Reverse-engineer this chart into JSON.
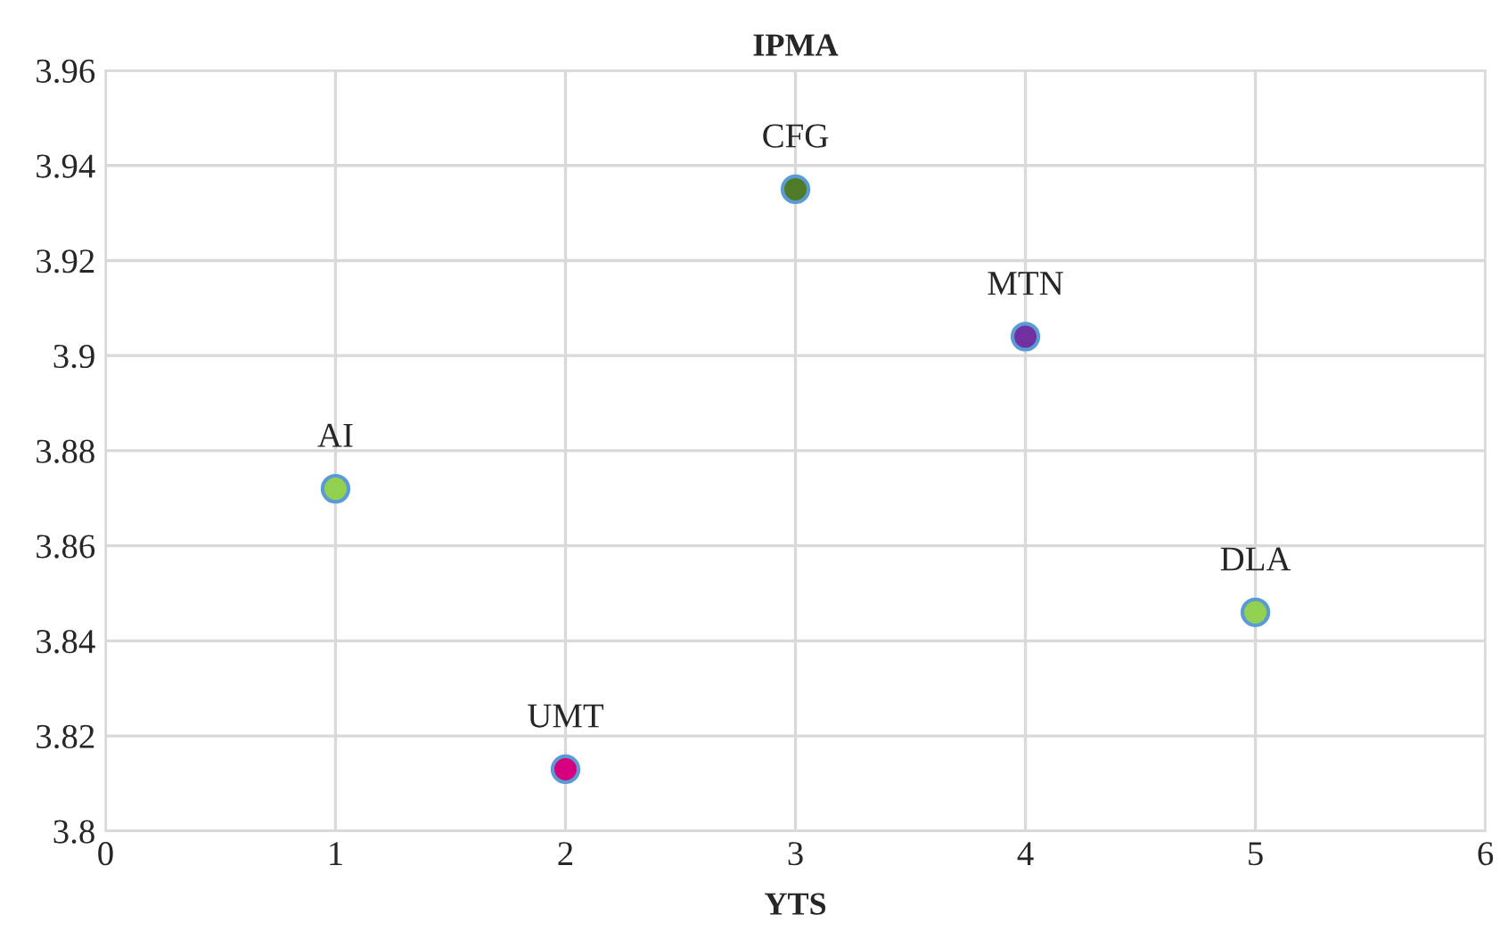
{
  "chart_data": {
    "type": "scatter",
    "title": "IPMA",
    "xlabel": "YTS",
    "x": [
      1,
      2,
      3,
      4,
      5
    ],
    "values": [
      3.872,
      3.813,
      3.935,
      3.904,
      3.846
    ],
    "colors": [
      "#92d050",
      "#d6007f",
      "#4f7a28",
      "#7030a0",
      "#92d050"
    ],
    "annotations": [
      {
        "text": "AI",
        "x": 1,
        "y": 3.872
      },
      {
        "text": "UMT",
        "x": 2,
        "y": 3.813
      },
      {
        "text": "CFG",
        "x": 3,
        "y": 3.935
      },
      {
        "text": "MTN",
        "x": 4,
        "y": 3.904
      },
      {
        "text": "DLA",
        "x": 5,
        "y": 3.846
      }
    ],
    "xlim": [
      0,
      6
    ],
    "xticks": [
      0,
      1,
      2,
      3,
      4,
      5,
      6
    ],
    "ylim": [
      3.8,
      3.96
    ],
    "yticks": [
      3.8,
      3.82,
      3.84,
      3.86,
      3.88,
      3.9,
      3.92,
      3.94,
      3.96
    ],
    "grid": true,
    "marker": "circle"
  }
}
